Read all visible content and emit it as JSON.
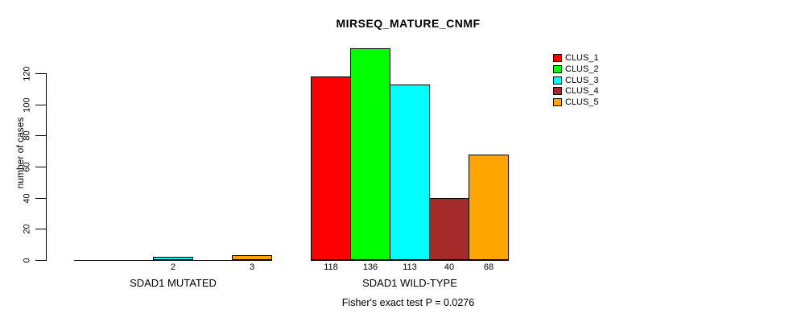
{
  "chart_data": {
    "type": "bar",
    "title": "MIRSEQ_MATURE_CNMF",
    "xlabel": "",
    "ylabel": "number of cases",
    "caption": "Fisher's exact test P = 0.0276",
    "groups": [
      "SDAD1 MUTATED",
      "SDAD1 WILD-TYPE"
    ],
    "series": [
      {
        "name": "CLUS_1",
        "color": "#FF0000",
        "values": [
          0,
          118
        ]
      },
      {
        "name": "CLUS_2",
        "color": "#00FF00",
        "values": [
          0,
          136
        ]
      },
      {
        "name": "CLUS_3",
        "color": "#00FFFF",
        "values": [
          2,
          113
        ]
      },
      {
        "name": "CLUS_4",
        "color": "#A52A2A",
        "values": [
          0,
          40
        ]
      },
      {
        "name": "CLUS_5",
        "color": "#FFA500",
        "values": [
          3,
          68
        ]
      }
    ],
    "bar_value_labels": {
      "SDAD1 MUTATED": [
        null,
        null,
        2,
        null,
        3
      ],
      "SDAD1 WILD-TYPE": [
        118,
        136,
        113,
        40,
        68
      ]
    },
    "yticks": [
      0,
      20,
      40,
      60,
      80,
      100,
      120
    ],
    "ylim": [
      0,
      140
    ],
    "grid": false,
    "legend_position": "topright",
    "axis_color": "#000000",
    "background_color": "#ffffff"
  }
}
